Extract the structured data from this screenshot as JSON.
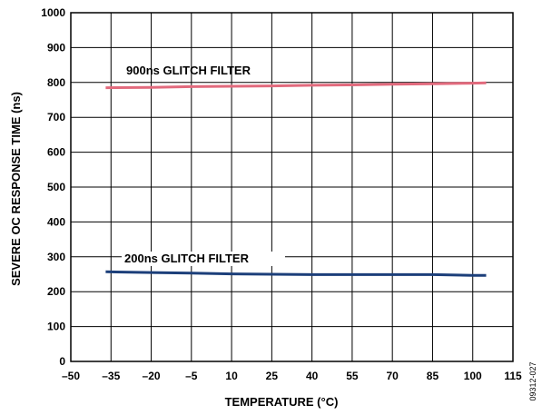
{
  "chart_data": {
    "type": "line",
    "xlabel": "TEMPERATURE (°C)",
    "ylabel": "SEVERE OC RESPONSE TIME (ns)",
    "xlim": [
      -50,
      115
    ],
    "ylim": [
      0,
      1000
    ],
    "x_ticks": [
      -50,
      -35,
      -20,
      -5,
      10,
      25,
      40,
      55,
      70,
      85,
      100,
      115
    ],
    "x_tick_labels": [
      "–50",
      "–35",
      "–20",
      "–5",
      "10",
      "25",
      "40",
      "55",
      "70",
      "85",
      "100",
      "115"
    ],
    "y_ticks": [
      0,
      100,
      200,
      300,
      400,
      500,
      600,
      700,
      800,
      900,
      1000
    ],
    "y_tick_labels": [
      "0",
      "100",
      "200",
      "300",
      "400",
      "500",
      "600",
      "700",
      "800",
      "900",
      "1000"
    ],
    "grid": true,
    "series": [
      {
        "name": "900ns GLITCH FILTER",
        "color": "#e26a7d",
        "x": [
          -37,
          -20,
          -5,
          10,
          25,
          40,
          55,
          70,
          85,
          100,
          105
        ],
        "y": [
          785,
          786,
          788,
          789,
          790,
          792,
          793,
          795,
          796,
          798,
          799
        ]
      },
      {
        "name": "200ns GLITCH FILTER",
        "color": "#1c3f7a",
        "x": [
          -37,
          -20,
          -5,
          10,
          25,
          40,
          55,
          70,
          85,
          100,
          105
        ],
        "y": [
          257,
          255,
          253,
          251,
          250,
          249,
          249,
          249,
          249,
          247,
          247
        ]
      }
    ]
  },
  "figure_id": "09312-027"
}
